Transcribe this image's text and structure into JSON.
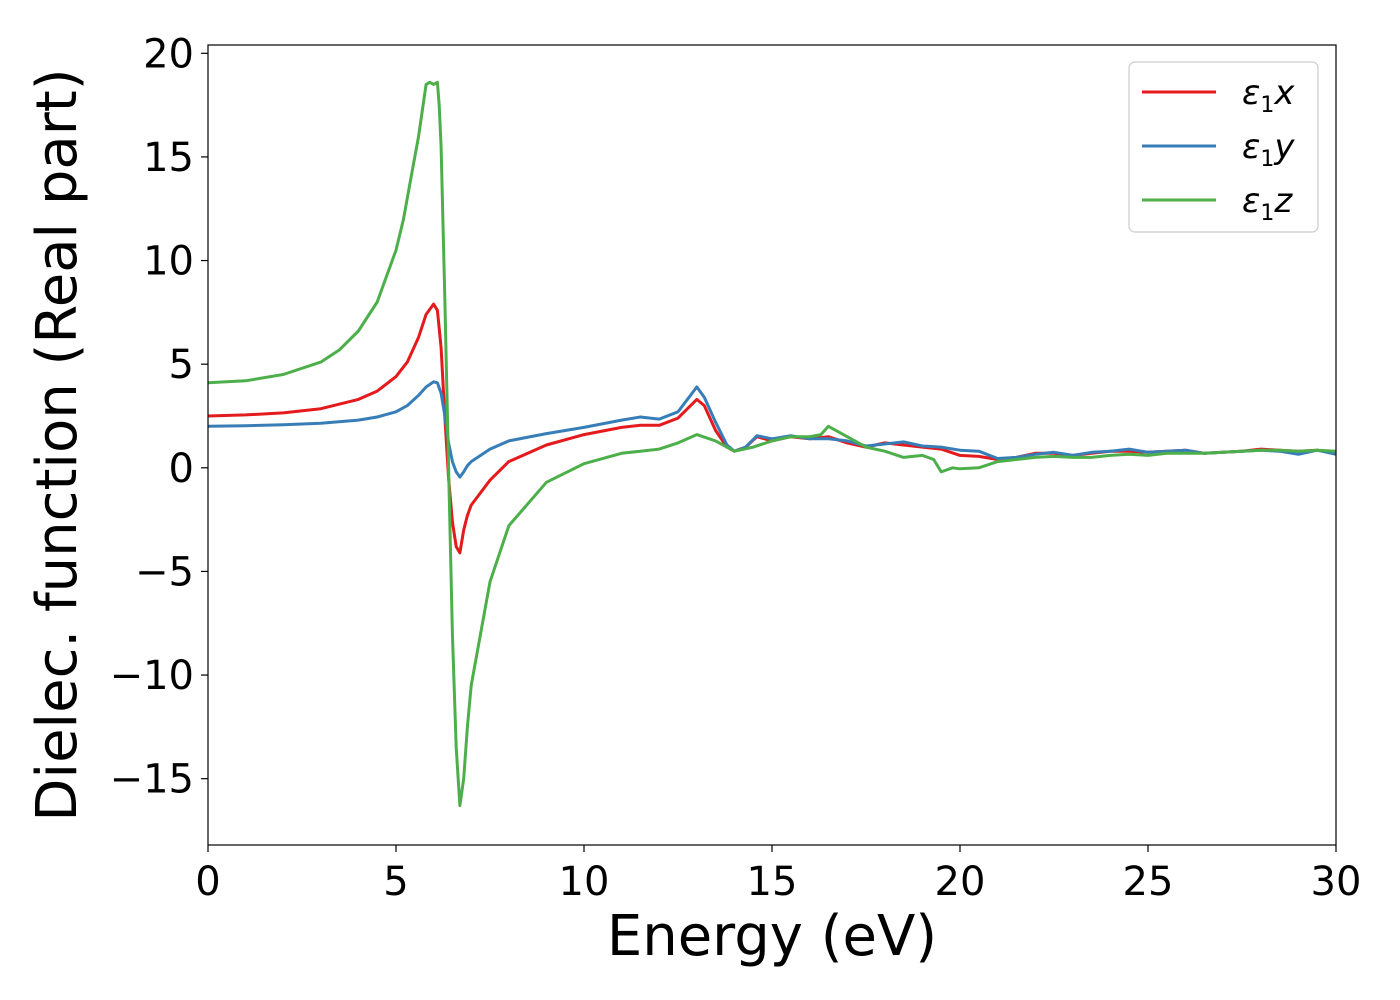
{
  "chart_data": {
    "type": "line",
    "title": "",
    "xlabel": "Energy (eV)",
    "ylabel": "Dielec. function (Real part)",
    "xlim": [
      0,
      30
    ],
    "ylim": [
      -18.2,
      20.4
    ],
    "xticks": [
      0,
      5,
      10,
      15,
      20,
      25,
      30
    ],
    "xtick_labels": [
      "0",
      "5",
      "10",
      "15",
      "20",
      "25",
      "30"
    ],
    "yticks": [
      -15,
      -10,
      -5,
      0,
      5,
      10,
      15,
      20
    ],
    "ytick_labels": [
      "−15",
      "−10",
      "−5",
      "0",
      "5",
      "10",
      "15",
      "20"
    ],
    "grid": false,
    "legend_position": "top-right",
    "series": [
      {
        "name": "ε1x",
        "legend_base": "ε",
        "legend_sub": "1",
        "legend_var": "x",
        "color": "#e41a1c",
        "x": [
          0,
          1,
          2,
          3,
          4,
          4.5,
          5,
          5.3,
          5.6,
          5.8,
          6.0,
          6.1,
          6.2,
          6.3,
          6.4,
          6.5,
          6.6,
          6.7,
          6.8,
          6.9,
          7.0,
          7.5,
          8,
          9,
          10,
          11,
          11.5,
          12,
          12.5,
          13.0,
          13.2,
          13.5,
          13.8,
          14,
          14.3,
          14.6,
          15,
          15.5,
          16,
          16.5,
          17,
          17.5,
          18,
          18.5,
          19,
          19.5,
          20,
          20.5,
          21,
          21.5,
          22,
          22.5,
          23,
          23.5,
          24,
          24.5,
          25,
          25.5,
          26,
          26.5,
          27,
          27.5,
          28,
          28.5,
          29,
          29.5,
          30
        ],
        "y": [
          2.5,
          2.55,
          2.65,
          2.85,
          3.3,
          3.7,
          4.4,
          5.1,
          6.3,
          7.4,
          7.9,
          7.6,
          5.8,
          2.4,
          -0.5,
          -2.6,
          -3.8,
          -4.1,
          -3.0,
          -2.3,
          -1.8,
          -0.6,
          0.3,
          1.1,
          1.6,
          1.95,
          2.05,
          2.05,
          2.4,
          3.3,
          3.0,
          1.8,
          1.0,
          0.8,
          1.0,
          1.5,
          1.3,
          1.5,
          1.4,
          1.5,
          1.2,
          1.0,
          1.2,
          1.1,
          1.0,
          0.9,
          0.6,
          0.55,
          0.4,
          0.5,
          0.7,
          0.7,
          0.6,
          0.7,
          0.8,
          0.8,
          0.75,
          0.8,
          0.85,
          0.7,
          0.75,
          0.8,
          0.9,
          0.85,
          0.8,
          0.85,
          0.7
        ]
      },
      {
        "name": "ε1y",
        "legend_base": "ε",
        "legend_sub": "1",
        "legend_var": "y",
        "color": "#377eb8",
        "x": [
          0,
          1,
          2,
          3,
          4,
          4.5,
          5,
          5.3,
          5.6,
          5.8,
          6.0,
          6.1,
          6.2,
          6.3,
          6.4,
          6.5,
          6.6,
          6.7,
          6.8,
          6.9,
          7.0,
          7.5,
          8,
          9,
          10,
          11,
          11.5,
          12,
          12.5,
          13.0,
          13.2,
          13.5,
          13.8,
          14,
          14.3,
          14.6,
          15,
          15.5,
          16,
          16.5,
          17,
          17.5,
          18,
          18.5,
          19,
          19.5,
          20,
          20.5,
          21,
          21.5,
          22,
          22.5,
          23,
          23.5,
          24,
          24.5,
          25,
          25.5,
          26,
          26.5,
          27,
          27.5,
          28,
          28.5,
          29,
          29.5,
          30
        ],
        "y": [
          2.0,
          2.03,
          2.08,
          2.15,
          2.3,
          2.45,
          2.7,
          3.0,
          3.5,
          3.9,
          4.15,
          4.1,
          3.6,
          2.5,
          1.2,
          0.3,
          -0.2,
          -0.45,
          -0.2,
          0.1,
          0.3,
          0.9,
          1.3,
          1.65,
          1.95,
          2.3,
          2.45,
          2.35,
          2.7,
          3.9,
          3.4,
          2.2,
          1.1,
          0.8,
          1.0,
          1.55,
          1.4,
          1.55,
          1.4,
          1.4,
          1.3,
          1.05,
          1.15,
          1.25,
          1.05,
          1.0,
          0.85,
          0.8,
          0.45,
          0.5,
          0.65,
          0.75,
          0.6,
          0.75,
          0.8,
          0.9,
          0.75,
          0.8,
          0.85,
          0.7,
          0.75,
          0.8,
          0.85,
          0.8,
          0.65,
          0.85,
          0.65
        ]
      },
      {
        "name": "ε1z",
        "legend_base": "ε",
        "legend_sub": "1",
        "legend_var": "z",
        "color": "#4daf4a",
        "x": [
          0,
          1,
          2,
          3,
          3.5,
          4,
          4.5,
          5,
          5.2,
          5.4,
          5.6,
          5.8,
          5.9,
          6.0,
          6.1,
          6.15,
          6.2,
          6.3,
          6.4,
          6.5,
          6.6,
          6.7,
          6.8,
          6.9,
          7.0,
          7.5,
          8,
          9,
          10,
          11,
          11.5,
          12,
          12.5,
          13.0,
          13.5,
          14,
          14.5,
          15,
          15.5,
          16,
          16.3,
          16.5,
          17,
          17.5,
          18,
          18.5,
          19,
          19.3,
          19.5,
          19.8,
          20,
          20.5,
          21,
          21.5,
          22,
          22.5,
          23,
          23.5,
          24,
          24.5,
          25,
          25.5,
          26,
          26.5,
          27,
          27.5,
          28,
          28.5,
          29,
          29.5,
          30
        ],
        "y": [
          4.1,
          4.2,
          4.5,
          5.1,
          5.7,
          6.6,
          8.0,
          10.5,
          12.0,
          14.0,
          16.0,
          18.5,
          18.6,
          18.5,
          18.6,
          17.5,
          15.5,
          8.0,
          0.0,
          -8.0,
          -13.5,
          -16.3,
          -15.0,
          -12.5,
          -10.5,
          -5.5,
          -2.8,
          -0.7,
          0.2,
          0.7,
          0.8,
          0.9,
          1.2,
          1.6,
          1.3,
          0.8,
          1.0,
          1.3,
          1.5,
          1.5,
          1.6,
          2.0,
          1.5,
          1.0,
          0.8,
          0.5,
          0.6,
          0.4,
          -0.2,
          0.0,
          -0.05,
          0.0,
          0.3,
          0.4,
          0.5,
          0.55,
          0.5,
          0.5,
          0.6,
          0.65,
          0.6,
          0.7,
          0.7,
          0.7,
          0.75,
          0.8,
          0.85,
          0.85,
          0.8,
          0.85,
          0.8
        ]
      }
    ]
  }
}
